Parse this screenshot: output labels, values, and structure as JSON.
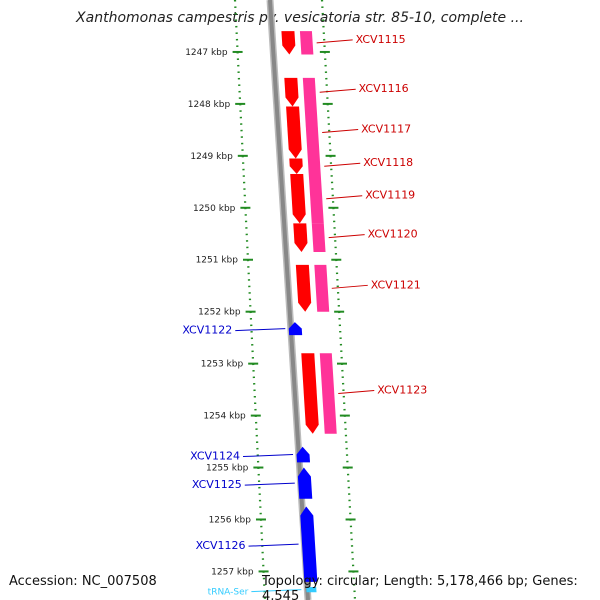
{
  "title": "Xanthomonas campestris pv. vesicatoria str. 85-10, complete ...",
  "footer": {
    "accession": "Accession: NC_007508",
    "stats": "Topology: circular; Length: 5,178,466 bp; Genes: 4,545"
  },
  "colors": {
    "forward_cds": "#ff0000",
    "forward_gene": "#ff3399",
    "reverse_cds": "#0000ff",
    "trna": "#33ccff",
    "backbone": "#888888",
    "scale_dots": "#228b22",
    "forward_label": "#cc0000",
    "reverse_label": "#0000cc"
  },
  "scale": {
    "unit": "kbp",
    "ticks": [
      {
        "label": "1247 kbp",
        "kbp": 1247
      },
      {
        "label": "1248 kbp",
        "kbp": 1248
      },
      {
        "label": "1249 kbp",
        "kbp": 1249
      },
      {
        "label": "1250 kbp",
        "kbp": 1250
      },
      {
        "label": "1251 kbp",
        "kbp": 1251
      },
      {
        "label": "1252 kbp",
        "kbp": 1252
      },
      {
        "label": "1253 kbp",
        "kbp": 1253
      },
      {
        "label": "1254 kbp",
        "kbp": 1254
      },
      {
        "label": "1255 kbp",
        "kbp": 1255
      },
      {
        "label": "1256 kbp",
        "kbp": 1256
      },
      {
        "label": "1257 kbp",
        "kbp": 1257
      }
    ]
  },
  "features": [
    {
      "name": "XCV1115",
      "strand": "+",
      "start_kbp": 1246.6,
      "end_kbp": 1247.05
    },
    {
      "name": "XCV1116",
      "strand": "+",
      "start_kbp": 1247.5,
      "end_kbp": 1248.05
    },
    {
      "name": "XCV1117",
      "strand": "+",
      "start_kbp": 1248.05,
      "end_kbp": 1249.05
    },
    {
      "name": "XCV1118",
      "strand": "+",
      "start_kbp": 1249.05,
      "end_kbp": 1249.35
    },
    {
      "name": "XCV1119",
      "strand": "+",
      "start_kbp": 1249.35,
      "end_kbp": 1250.3
    },
    {
      "name": "XCV1120",
      "strand": "+",
      "start_kbp": 1250.3,
      "end_kbp": 1250.85
    },
    {
      "name": "XCV1121",
      "strand": "+",
      "start_kbp": 1251.1,
      "end_kbp": 1252.0
    },
    {
      "name": "XCV1122",
      "strand": "-",
      "start_kbp": 1252.2,
      "end_kbp": 1252.45
    },
    {
      "name": "XCV1123",
      "strand": "+",
      "start_kbp": 1252.8,
      "end_kbp": 1254.35
    },
    {
      "name": "XCV1124",
      "strand": "-",
      "start_kbp": 1254.6,
      "end_kbp": 1254.9
    },
    {
      "name": "XCV1125",
      "strand": "-",
      "start_kbp": 1255.0,
      "end_kbp": 1255.6
    },
    {
      "name": "XCV1126",
      "strand": "-",
      "start_kbp": 1255.75,
      "end_kbp": 1257.2
    },
    {
      "name": "tRNA-Ser",
      "strand": "-",
      "start_kbp": 1257.3,
      "end_kbp": 1257.4
    }
  ]
}
